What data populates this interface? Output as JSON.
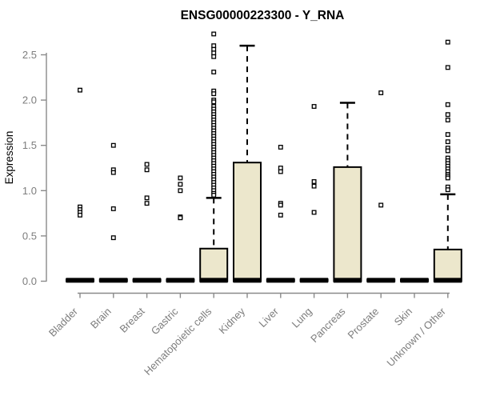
{
  "chart_data": {
    "type": "boxplot",
    "title": "ENSG00000223300 - Y_RNA",
    "xlabel": "",
    "ylabel": "Expression",
    "ylim": [
      -0.1,
      2.75
    ],
    "yticks": [
      "0.0",
      "0.5",
      "1.0",
      "1.5",
      "2.0",
      "2.5"
    ],
    "grid": false,
    "legend": "none",
    "colors": {
      "box_fill": "#ece7cc",
      "box_stroke": "#000000",
      "median": "#000000",
      "whisker": "#000000",
      "axis": "#8a8a8a",
      "text": "#7d7d7d",
      "title": "#000000",
      "background": "#ffffff"
    },
    "categories": [
      "Bladder",
      "Brain",
      "Breast",
      "Gastric",
      "Hematopoietic cells",
      "Kidney",
      "Liver",
      "Lung",
      "Pancreas",
      "Prostate",
      "Skin",
      "Unknown / Other"
    ],
    "series": [
      {
        "category": "Bladder",
        "q1": 0,
        "median": 0.01,
        "q3": 0.02,
        "whisker_low": 0,
        "whisker_high": 0.02,
        "outliers": [
          2.11,
          0.82,
          0.79,
          0.76,
          0.73
        ]
      },
      {
        "category": "Brain",
        "q1": 0,
        "median": 0.01,
        "q3": 0.02,
        "whisker_low": 0,
        "whisker_high": 0.02,
        "outliers": [
          1.5,
          1.23,
          1.2,
          0.8,
          0.48
        ]
      },
      {
        "category": "Breast",
        "q1": 0,
        "median": 0.01,
        "q3": 0.02,
        "whisker_low": 0,
        "whisker_high": 0.02,
        "outliers": [
          1.29,
          1.23,
          0.92,
          0.86
        ]
      },
      {
        "category": "Gastric",
        "q1": 0,
        "median": 0.01,
        "q3": 0.02,
        "whisker_low": 0,
        "whisker_high": 0.02,
        "outliers": [
          1.14,
          1.07,
          1.0,
          0.71,
          0.7
        ]
      },
      {
        "category": "Hematopoietic cells",
        "q1": 0,
        "median": 0.01,
        "q3": 0.36,
        "whisker_low": 0,
        "whisker_high": 0.92,
        "outliers": [
          2.73,
          2.6,
          2.56,
          2.52,
          2.48,
          2.31,
          2.1,
          2.07,
          2.0,
          1.98,
          1.93,
          1.9,
          1.87,
          1.84,
          1.81,
          1.78,
          1.75,
          1.72,
          1.69,
          1.66,
          1.63,
          1.6,
          1.57,
          1.54,
          1.51,
          1.48,
          1.45,
          1.42,
          1.39,
          1.36,
          1.33,
          1.3,
          1.27,
          1.24,
          1.21,
          1.18,
          1.15,
          1.12,
          1.09,
          1.06,
          1.03,
          1.0,
          0.97,
          0.95
        ]
      },
      {
        "category": "Kidney",
        "q1": 0,
        "median": 0.01,
        "q3": 1.31,
        "whisker_low": 0,
        "whisker_high": 2.6,
        "outliers": []
      },
      {
        "category": "Liver",
        "q1": 0,
        "median": 0.01,
        "q3": 0.02,
        "whisker_low": 0,
        "whisker_high": 0.02,
        "outliers": [
          1.48,
          1.25,
          1.21,
          0.86,
          0.84,
          0.73
        ]
      },
      {
        "category": "Lung",
        "q1": 0,
        "median": 0.01,
        "q3": 0.02,
        "whisker_low": 0,
        "whisker_high": 0.02,
        "outliers": [
          1.93,
          1.1,
          1.05,
          0.76
        ]
      },
      {
        "category": "Pancreas",
        "q1": 0,
        "median": 0.01,
        "q3": 1.26,
        "whisker_low": 0,
        "whisker_high": 1.97,
        "outliers": []
      },
      {
        "category": "Prostate",
        "q1": 0,
        "median": 0.01,
        "q3": 0.02,
        "whisker_low": 0,
        "whisker_high": 0.02,
        "outliers": [
          2.08,
          0.84
        ]
      },
      {
        "category": "Skin",
        "q1": 0,
        "median": 0.01,
        "q3": 0.02,
        "whisker_low": 0,
        "whisker_high": 0.02,
        "outliers": []
      },
      {
        "category": "Unknown / Other",
        "q1": 0,
        "median": 0.01,
        "q3": 0.35,
        "whisker_low": 0,
        "whisker_high": 0.96,
        "outliers": [
          2.64,
          2.36,
          1.95,
          1.84,
          1.78,
          1.62,
          1.54,
          1.47,
          1.44,
          1.36,
          1.33,
          1.3,
          1.27,
          1.24,
          1.21,
          1.18,
          1.16,
          1.14,
          1.04,
          1.01
        ]
      }
    ]
  }
}
